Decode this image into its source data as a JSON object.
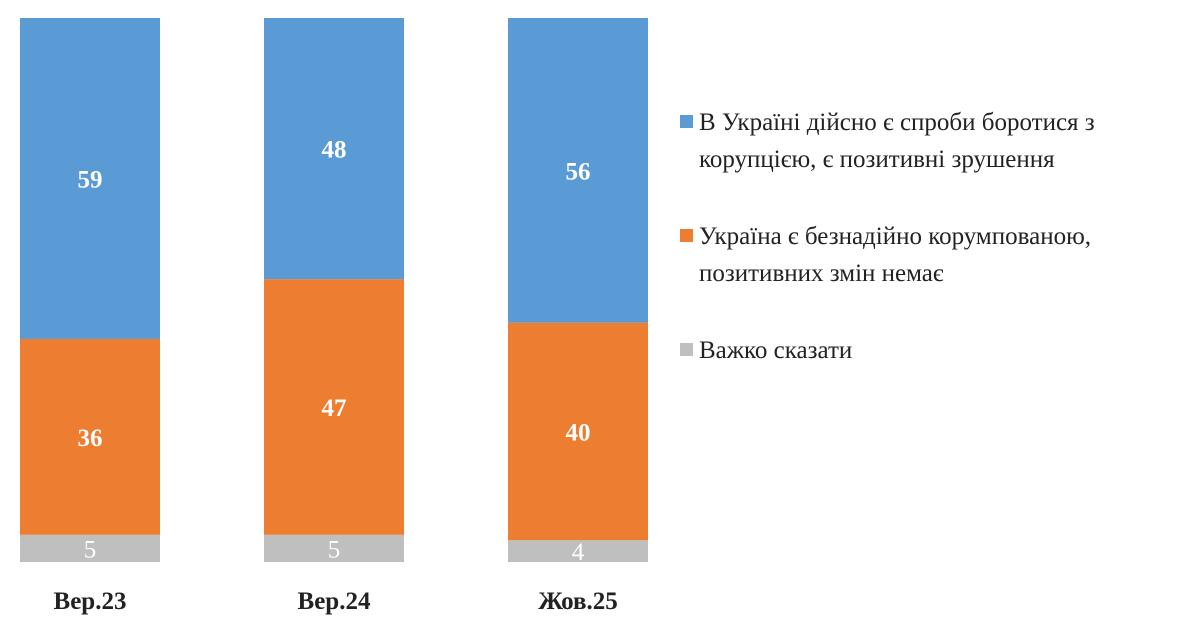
{
  "chart_data": {
    "type": "bar",
    "stacked": true,
    "categories": [
      "Вер.23",
      "Вер.24",
      "Жов.25"
    ],
    "series": [
      {
        "name": "В Україні дійсно є спроби боротися з корупцією, є позитивні зрушення",
        "values": [
          59,
          48,
          56
        ],
        "color": "#5B9BD5"
      },
      {
        "name": "Україна є безнадійно корумпованою, позитивних змін немає",
        "values": [
          36,
          47,
          40
        ],
        "color": "#ED7D31"
      },
      {
        "name": "Важко сказати",
        "values": [
          5,
          5,
          4
        ],
        "color": "#BFBFBF"
      }
    ],
    "ylim": [
      0,
      100
    ],
    "grid": false,
    "legend_position": "right"
  }
}
